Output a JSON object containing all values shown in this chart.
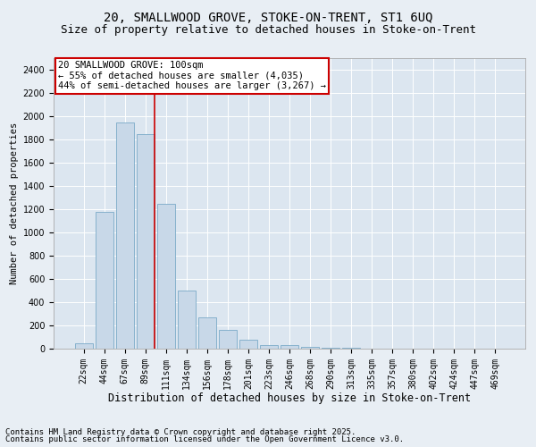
{
  "title1": "20, SMALLWOOD GROVE, STOKE-ON-TRENT, ST1 6UQ",
  "title2": "Size of property relative to detached houses in Stoke-on-Trent",
  "xlabel": "Distribution of detached houses by size in Stoke-on-Trent",
  "ylabel": "Number of detached properties",
  "categories": [
    "22sqm",
    "44sqm",
    "67sqm",
    "89sqm",
    "111sqm",
    "134sqm",
    "156sqm",
    "178sqm",
    "201sqm",
    "223sqm",
    "246sqm",
    "268sqm",
    "290sqm",
    "313sqm",
    "335sqm",
    "357sqm",
    "380sqm",
    "402sqm",
    "424sqm",
    "447sqm",
    "469sqm"
  ],
  "values": [
    50,
    1180,
    1950,
    1850,
    1250,
    500,
    270,
    160,
    75,
    30,
    30,
    18,
    5,
    5,
    2,
    2,
    1,
    1,
    0,
    0,
    0
  ],
  "bar_color": "#c8d8e8",
  "bar_edge_color": "#7aaac8",
  "vline_color": "#cc0000",
  "annotation_text": "20 SMALLWOOD GROVE: 100sqm\n← 55% of detached houses are smaller (4,035)\n44% of semi-detached houses are larger (3,267) →",
  "annotation_box_color": "#ffffff",
  "annotation_box_edge_color": "#cc0000",
  "ylim": [
    0,
    2500
  ],
  "yticks": [
    0,
    200,
    400,
    600,
    800,
    1000,
    1200,
    1400,
    1600,
    1800,
    2000,
    2200,
    2400
  ],
  "background_color": "#e8eef4",
  "plot_background": "#dce6f0",
  "grid_color": "#ffffff",
  "footnote1": "Contains HM Land Registry data © Crown copyright and database right 2025.",
  "footnote2": "Contains public sector information licensed under the Open Government Licence v3.0.",
  "title1_fontsize": 10,
  "title2_fontsize": 9,
  "xlabel_fontsize": 8.5,
  "ylabel_fontsize": 7.5,
  "tick_fontsize": 7,
  "annotation_fontsize": 7.5,
  "footnote_fontsize": 6.5
}
